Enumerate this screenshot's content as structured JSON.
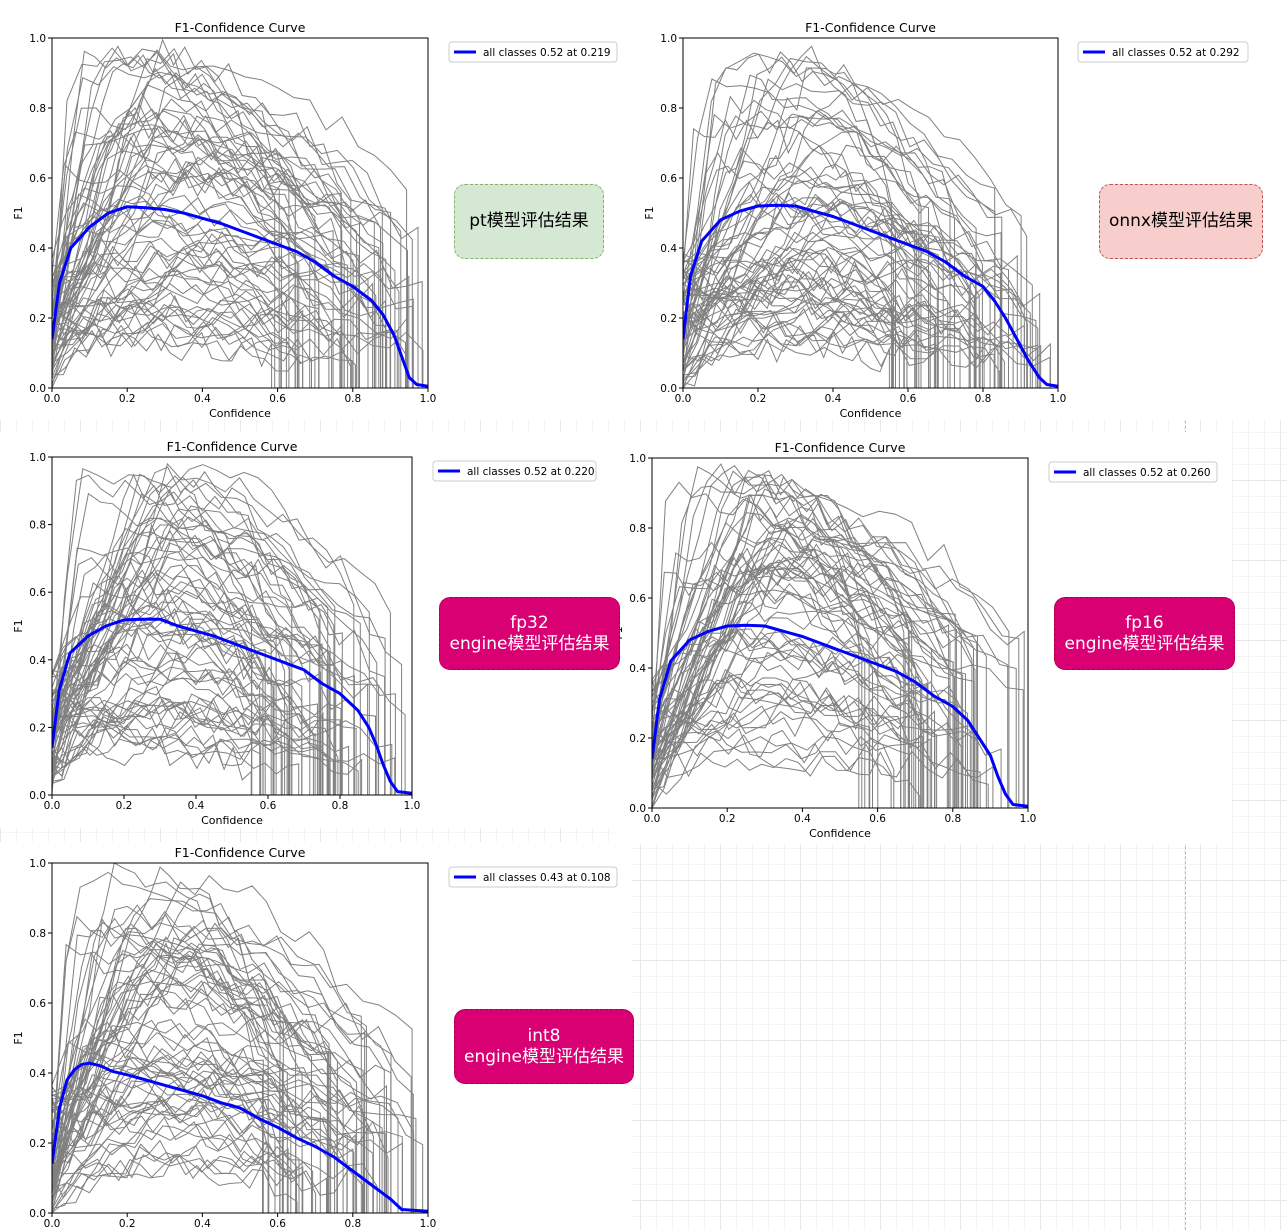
{
  "chart_data": [
    {
      "type": "line",
      "title": "F1-Confidence Curve",
      "xlabel": "Confidence",
      "ylabel": "F1",
      "xlim": [
        0,
        1
      ],
      "ylim": [
        0,
        1
      ],
      "x_ticks": [
        "0.0",
        "0.2",
        "0.4",
        "0.6",
        "0.8",
        "1.0"
      ],
      "y_ticks": [
        "0.0",
        "0.2",
        "0.4",
        "0.6",
        "0.8",
        "1.0"
      ],
      "grid": false,
      "legend_position": "outside-top-right",
      "series": [
        {
          "name": "all classes 0.52 at 0.219",
          "color": "#0000ff",
          "x": [
            0,
            0.02,
            0.05,
            0.1,
            0.15,
            0.2,
            0.25,
            0.3,
            0.35,
            0.4,
            0.45,
            0.5,
            0.55,
            0.6,
            0.65,
            0.7,
            0.75,
            0.8,
            0.85,
            0.88,
            0.91,
            0.93,
            0.95,
            0.97,
            1.0
          ],
          "y": [
            0.14,
            0.3,
            0.4,
            0.46,
            0.5,
            0.518,
            0.515,
            0.51,
            0.5,
            0.485,
            0.47,
            0.45,
            0.43,
            0.41,
            0.39,
            0.36,
            0.32,
            0.29,
            0.25,
            0.21,
            0.15,
            0.09,
            0.03,
            0.01,
            0.005
          ]
        }
      ]
    },
    {
      "type": "line",
      "title": "F1-Confidence Curve",
      "xlabel": "Confidence",
      "ylabel": "F1",
      "xlim": [
        0,
        1
      ],
      "ylim": [
        0,
        1
      ],
      "x_ticks": [
        "0.0",
        "0.2",
        "0.4",
        "0.6",
        "0.8",
        "1.0"
      ],
      "y_ticks": [
        "0.0",
        "0.2",
        "0.4",
        "0.6",
        "0.8",
        "1.0"
      ],
      "grid": false,
      "legend_position": "outside-top-right",
      "series": [
        {
          "name": "all classes 0.52 at 0.292",
          "color": "#0000ff",
          "x": [
            0,
            0.02,
            0.05,
            0.1,
            0.15,
            0.2,
            0.25,
            0.3,
            0.35,
            0.4,
            0.45,
            0.5,
            0.55,
            0.6,
            0.65,
            0.7,
            0.75,
            0.8,
            0.83,
            0.86,
            0.89,
            0.92,
            0.95,
            0.97,
            1.0
          ],
          "y": [
            0.14,
            0.32,
            0.42,
            0.48,
            0.505,
            0.52,
            0.522,
            0.52,
            0.505,
            0.49,
            0.47,
            0.45,
            0.43,
            0.41,
            0.39,
            0.36,
            0.32,
            0.29,
            0.25,
            0.2,
            0.14,
            0.08,
            0.03,
            0.01,
            0.005
          ]
        }
      ]
    },
    {
      "type": "line",
      "title": "F1-Confidence Curve",
      "xlabel": "Confidence",
      "ylabel": "F1",
      "xlim": [
        0,
        1
      ],
      "ylim": [
        0,
        1
      ],
      "x_ticks": [
        "0.0",
        "0.2",
        "0.4",
        "0.6",
        "0.8",
        "1.0"
      ],
      "y_ticks": [
        "0.0",
        "0.2",
        "0.4",
        "0.6",
        "0.8",
        "1.0"
      ],
      "grid": false,
      "legend_position": "outside-top-right",
      "series": [
        {
          "name": "all classes 0.52 at 0.220",
          "color": "#0000ff",
          "x": [
            0,
            0.02,
            0.05,
            0.1,
            0.15,
            0.2,
            0.25,
            0.3,
            0.35,
            0.4,
            0.45,
            0.5,
            0.55,
            0.6,
            0.65,
            0.7,
            0.75,
            0.8,
            0.85,
            0.88,
            0.9,
            0.92,
            0.94,
            0.96,
            1.0
          ],
          "y": [
            0.14,
            0.31,
            0.42,
            0.47,
            0.5,
            0.518,
            0.52,
            0.52,
            0.5,
            0.485,
            0.47,
            0.45,
            0.43,
            0.41,
            0.39,
            0.37,
            0.33,
            0.3,
            0.25,
            0.2,
            0.15,
            0.09,
            0.04,
            0.01,
            0.005
          ]
        }
      ]
    },
    {
      "type": "line",
      "title": "F1-Confidence Curve",
      "xlabel": "Confidence",
      "ylabel": "F1",
      "xlim": [
        0,
        1
      ],
      "ylim": [
        0,
        1
      ],
      "x_ticks": [
        "0.0",
        "0.2",
        "0.4",
        "0.6",
        "0.8",
        "1.0"
      ],
      "y_ticks": [
        "0.0",
        "0.2",
        "0.4",
        "0.6",
        "0.8",
        "1.0"
      ],
      "grid": false,
      "legend_position": "outside-top-right",
      "series": [
        {
          "name": "all classes 0.52 at 0.260",
          "color": "#0000ff",
          "x": [
            0,
            0.02,
            0.05,
            0.1,
            0.15,
            0.2,
            0.25,
            0.3,
            0.35,
            0.4,
            0.45,
            0.5,
            0.55,
            0.6,
            0.65,
            0.7,
            0.75,
            0.8,
            0.84,
            0.87,
            0.9,
            0.92,
            0.94,
            0.96,
            1.0
          ],
          "y": [
            0.14,
            0.31,
            0.42,
            0.48,
            0.505,
            0.52,
            0.522,
            0.52,
            0.505,
            0.49,
            0.47,
            0.45,
            0.43,
            0.41,
            0.39,
            0.36,
            0.32,
            0.29,
            0.25,
            0.2,
            0.15,
            0.09,
            0.04,
            0.01,
            0.005
          ]
        }
      ]
    },
    {
      "type": "line",
      "title": "F1-Confidence Curve",
      "xlabel": "",
      "ylabel": "F1",
      "xlim": [
        0,
        1
      ],
      "ylim": [
        0,
        1
      ],
      "x_ticks": [
        "0.0",
        "0.2",
        "0.4",
        "0.6",
        "0.8",
        "1.0"
      ],
      "y_ticks": [
        "0.0",
        "0.2",
        "0.4",
        "0.6",
        "0.8",
        "1.0"
      ],
      "grid": false,
      "legend_position": "outside-top-right",
      "series": [
        {
          "name": "all classes 0.43 at 0.108",
          "color": "#0000ff",
          "x": [
            0,
            0.02,
            0.04,
            0.06,
            0.08,
            0.1,
            0.13,
            0.16,
            0.2,
            0.25,
            0.3,
            0.35,
            0.4,
            0.45,
            0.5,
            0.55,
            0.6,
            0.65,
            0.7,
            0.75,
            0.8,
            0.85,
            0.9,
            0.93,
            1.0
          ],
          "y": [
            0.14,
            0.3,
            0.38,
            0.41,
            0.425,
            0.428,
            0.42,
            0.405,
            0.395,
            0.38,
            0.365,
            0.35,
            0.335,
            0.315,
            0.3,
            0.27,
            0.245,
            0.215,
            0.19,
            0.16,
            0.12,
            0.08,
            0.04,
            0.01,
            0.005
          ]
        }
      ]
    }
  ],
  "labels": {
    "pt": "pt模型评估结果",
    "onnx": "onnx模型评估结果",
    "fp32": "fp32\nengine模型评估结果",
    "fp16": "fp16\nengine模型评估结果",
    "int8": "int8\nengine模型评估结果"
  },
  "colors": {
    "class_curves": "#808080",
    "mean_curve": "#0000ff"
  }
}
